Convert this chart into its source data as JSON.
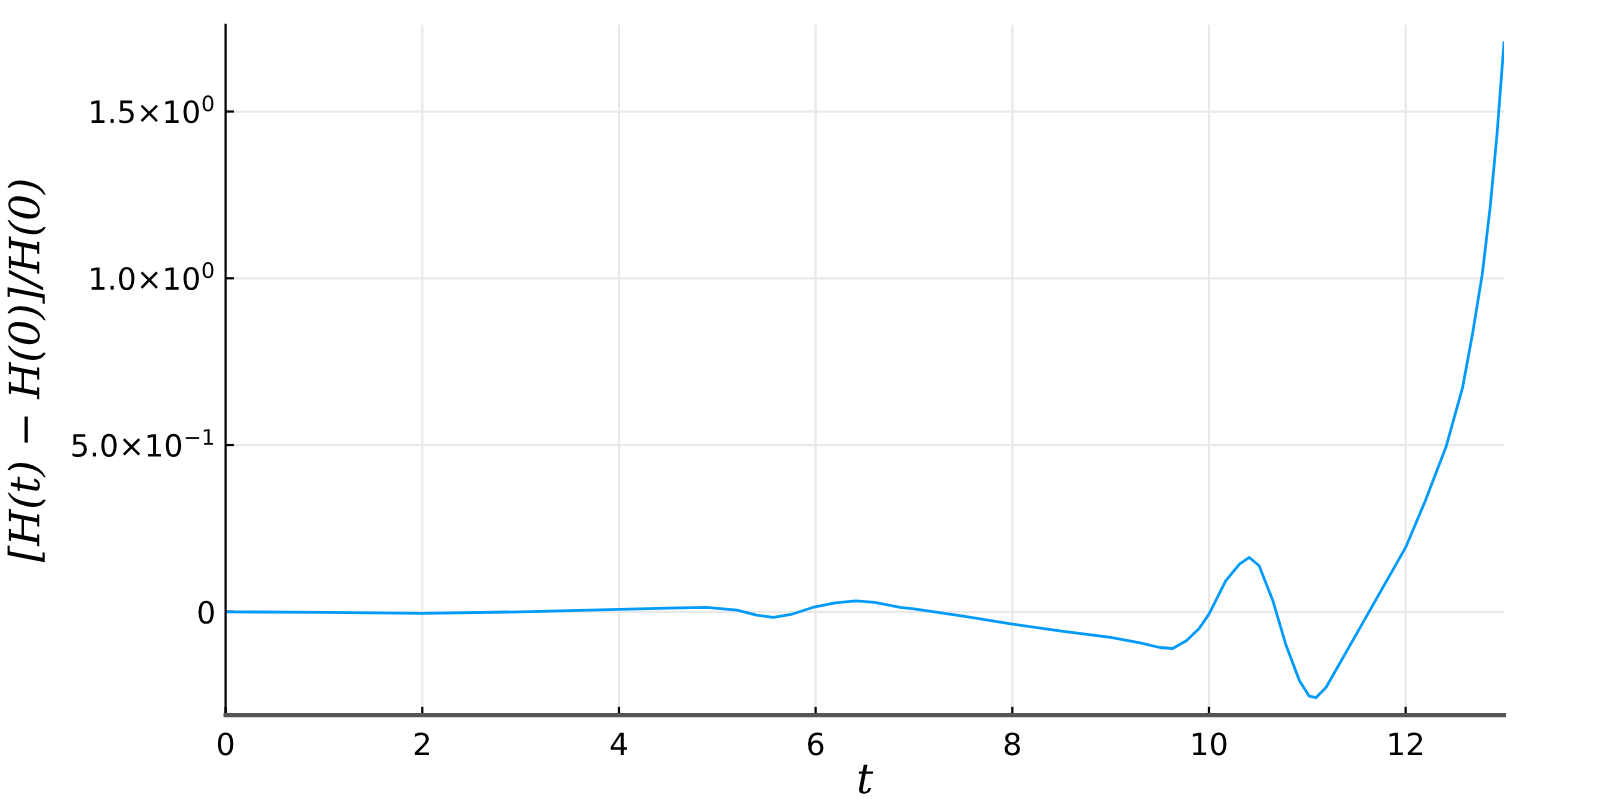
{
  "chart_data": {
    "type": "line",
    "xlabel": "t",
    "ylabel": "[H(t) − H(0)]/H(0)",
    "x": [
      0,
      1,
      2,
      3,
      4,
      4.5,
      4.89,
      5.2,
      5.4,
      5.57,
      5.75,
      5.97,
      6.2,
      6.41,
      6.6,
      6.86,
      7.0,
      7.5,
      8.0,
      8.5,
      9.0,
      9.3,
      9.5,
      9.63,
      9.77,
      9.9,
      10.0,
      10.17,
      10.31,
      10.41,
      10.51,
      10.65,
      10.78,
      10.92,
      11.02,
      11.09,
      11.19,
      11.46,
      11.73,
      12.0,
      12.2,
      12.41,
      12.58,
      12.68,
      12.78,
      12.86,
      12.93,
      13.0
    ],
    "series": [
      {
        "color": "#009afa",
        "values": [
          0,
          -0.002,
          -0.005,
          0.0,
          0.007,
          0.011,
          0.013,
          0.005,
          -0.01,
          -0.017,
          -0.008,
          0.013,
          0.027,
          0.033,
          0.028,
          0.013,
          0.009,
          -0.013,
          -0.037,
          -0.058,
          -0.077,
          -0.093,
          -0.107,
          -0.11,
          -0.087,
          -0.05,
          -0.007,
          0.093,
          0.143,
          0.163,
          0.138,
          0.033,
          -0.097,
          -0.207,
          -0.253,
          -0.257,
          -0.227,
          -0.087,
          0.053,
          0.193,
          0.333,
          0.494,
          0.674,
          0.834,
          1.014,
          1.215,
          1.435,
          1.706
        ]
      }
    ],
    "xlim": [
      0,
      13
    ],
    "ylim": [
      -0.31,
      1.76
    ],
    "xticks": [
      0,
      2,
      4,
      6,
      8,
      10,
      12
    ],
    "yticks": [
      0,
      {
        "value": 0.5,
        "label": "5.0×10$^{−1}$"
      },
      {
        "value": 1,
        "label": "1.0×10$^{0}$"
      },
      {
        "value": 1.5,
        "label": "1.5×10$^{0}$"
      }
    ],
    "grid": true,
    "line_style": "solid"
  }
}
